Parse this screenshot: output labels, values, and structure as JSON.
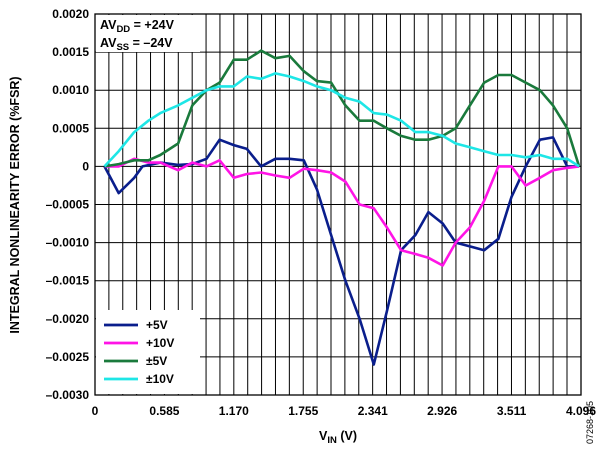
{
  "chart_data": {
    "type": "line",
    "xlabel": {
      "main": "V",
      "sub": "IN",
      "unit": " (V)"
    },
    "ylabel": "INTEGRAL NONLINEARITY ERROR (%FSR)",
    "xlim": [
      0,
      4.096
    ],
    "ylim": [
      -0.003,
      0.002
    ],
    "x_ticks": [
      0,
      0.585,
      1.17,
      1.755,
      2.341,
      2.926,
      3.511,
      4.096
    ],
    "x_tick_labels": [
      "0",
      "0.585",
      "1.170",
      "1.755",
      "2.341",
      "2.926",
      "3.511",
      "4.096"
    ],
    "x_minor_step": 0.117,
    "y_ticks": [
      0.002,
      0.0015,
      0.001,
      0.0005,
      0,
      -0.0005,
      -0.001,
      -0.0015,
      -0.002,
      -0.0025,
      -0.003
    ],
    "y_tick_labels": [
      "0.0020",
      "0.0015",
      "0.0010",
      "0.0005",
      "0",
      "–0.0005",
      "–0.0010",
      "–0.0015",
      "–0.0020",
      "–0.0025",
      "–0.0030"
    ],
    "grid": true,
    "legend_placement": "bottom-left",
    "conditions": [
      {
        "pre": "AV",
        "sub": "DD",
        "post": " = +24V"
      },
      {
        "pre": "AV",
        "sub": "SS",
        "post": " = –24V"
      }
    ],
    "figure_id": "07268-105",
    "series": [
      {
        "name": "+5V",
        "color": "#0a1e8c",
        "x": [
          0.08,
          0.2,
          0.33,
          0.4,
          0.55,
          0.7,
          0.82,
          0.94,
          1.05,
          1.17,
          1.28,
          1.4,
          1.52,
          1.64,
          1.76,
          1.87,
          1.99,
          2.11,
          2.23,
          2.35,
          2.46,
          2.58,
          2.7,
          2.81,
          2.93,
          3.04,
          3.16,
          3.28,
          3.4,
          3.51,
          3.63,
          3.75,
          3.86,
          3.98,
          4.08
        ],
        "y": [
          0.0,
          -0.00035,
          -0.00015,
          0.0,
          5e-05,
          2e-05,
          3e-05,
          0.0001,
          0.00035,
          0.00028,
          0.00023,
          0.0,
          0.0001,
          0.0001,
          8e-05,
          -0.0003,
          -0.0009,
          -0.0015,
          -0.002,
          -0.0026,
          -0.0019,
          -0.0011,
          -0.0009,
          -0.0006,
          -0.00075,
          -0.001,
          -0.00105,
          -0.0011,
          -0.00095,
          -0.0004,
          0.0,
          0.00035,
          0.00038,
          0.0,
          0.0
        ]
      },
      {
        "name": "+10V",
        "color": "#ff14e6",
        "x": [
          0.08,
          0.2,
          0.33,
          0.45,
          0.55,
          0.7,
          0.82,
          0.94,
          1.05,
          1.17,
          1.28,
          1.4,
          1.52,
          1.64,
          1.76,
          1.87,
          1.99,
          2.11,
          2.23,
          2.35,
          2.46,
          2.58,
          2.7,
          2.81,
          2.93,
          3.04,
          3.16,
          3.28,
          3.4,
          3.51,
          3.63,
          3.75,
          3.86,
          3.98,
          4.08
        ],
        "y": [
          0.0,
          0.0,
          0.0001,
          5e-05,
          5e-05,
          -5e-05,
          5e-05,
          0.0,
          8e-05,
          -0.00015,
          -0.0001,
          -8e-05,
          -0.00012,
          -0.00015,
          -3e-05,
          -5e-05,
          -8e-05,
          -0.0002,
          -0.0005,
          -0.00055,
          -0.0008,
          -0.0011,
          -0.00115,
          -0.0012,
          -0.0013,
          -0.001,
          -0.0008,
          -0.00045,
          0.0,
          0.0,
          -0.00025,
          -0.00015,
          -5e-05,
          -2e-05,
          0.0
        ]
      },
      {
        "name": "±5V",
        "color": "#1a7a3c",
        "x": [
          0.08,
          0.2,
          0.33,
          0.45,
          0.55,
          0.7,
          0.82,
          0.94,
          1.05,
          1.17,
          1.28,
          1.4,
          1.52,
          1.64,
          1.76,
          1.87,
          1.99,
          2.11,
          2.23,
          2.35,
          2.46,
          2.58,
          2.7,
          2.81,
          2.93,
          3.04,
          3.16,
          3.28,
          3.4,
          3.51,
          3.63,
          3.75,
          3.86,
          3.98,
          4.08
        ],
        "y": [
          0.0,
          3e-05,
          8e-05,
          8e-05,
          0.00015,
          0.0003,
          0.0008,
          0.001,
          0.0011,
          0.0014,
          0.0014,
          0.00152,
          0.00142,
          0.00145,
          0.00125,
          0.00112,
          0.0011,
          0.0008,
          0.0006,
          0.0006,
          0.0005,
          0.0004,
          0.00035,
          0.00035,
          0.0004,
          0.0005,
          0.0008,
          0.0011,
          0.0012,
          0.0012,
          0.0011,
          0.001,
          0.0008,
          0.0005,
          0.0
        ]
      },
      {
        "name": "±10V",
        "color": "#1ee6e6",
        "x": [
          0.08,
          0.2,
          0.33,
          0.45,
          0.55,
          0.7,
          0.82,
          0.94,
          1.05,
          1.17,
          1.28,
          1.4,
          1.52,
          1.64,
          1.76,
          1.87,
          1.99,
          2.11,
          2.23,
          2.35,
          2.46,
          2.58,
          2.7,
          2.81,
          2.93,
          3.04,
          3.16,
          3.28,
          3.4,
          3.51,
          3.63,
          3.75,
          3.86,
          3.98,
          4.08
        ],
        "y": [
          0.0,
          0.0002,
          0.00045,
          0.0006,
          0.0007,
          0.0008,
          0.0009,
          0.001,
          0.00105,
          0.00105,
          0.00118,
          0.00115,
          0.00122,
          0.00118,
          0.00112,
          0.00105,
          0.001,
          0.0009,
          0.00085,
          0.0007,
          0.00068,
          0.0006,
          0.00045,
          0.00045,
          0.0004,
          0.0003,
          0.00025,
          0.0002,
          0.00015,
          0.00015,
          0.00012,
          0.00015,
          0.0001,
          0.0001,
          0.0
        ]
      }
    ]
  }
}
